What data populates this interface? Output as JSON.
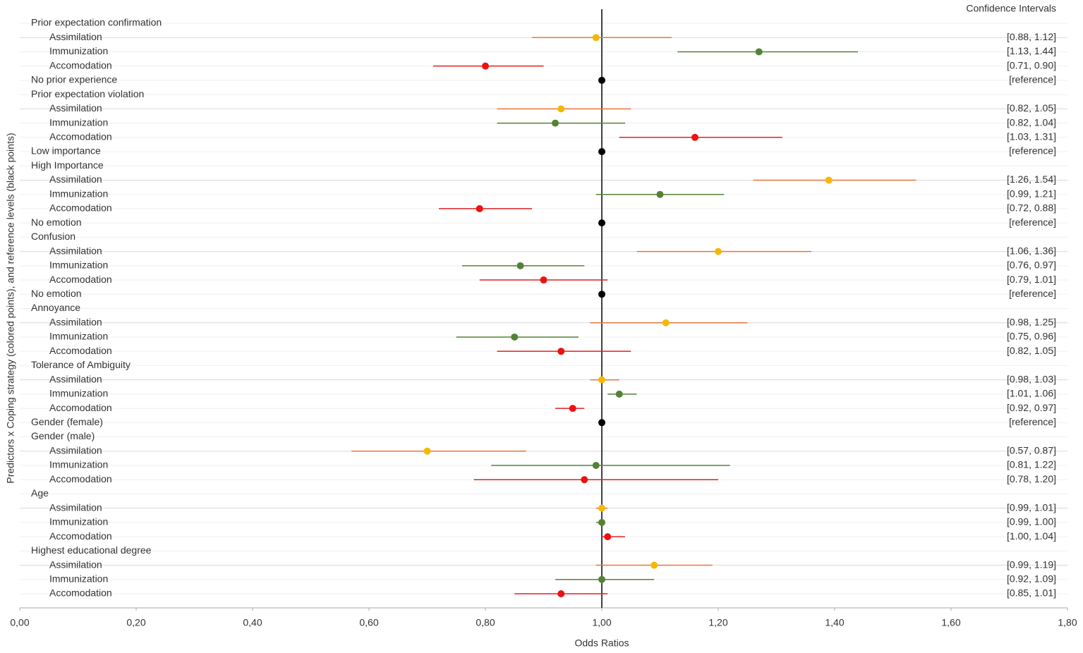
{
  "chart_data": {
    "type": "forest",
    "x_label": "Odds Ratios",
    "y_label": "Predictors x Coping strategy (colored points), and reference levels (black points)",
    "ci_header": "Confidence Intervals",
    "xlim": [
      0,
      1.8
    ],
    "xticks": [
      {
        "value": 0,
        "label": "0,00"
      },
      {
        "value": 0.2,
        "label": "0,20"
      },
      {
        "value": 0.4,
        "label": "0,40"
      },
      {
        "value": 0.6,
        "label": "0,60"
      },
      {
        "value": 0.8,
        "label": "0,80"
      },
      {
        "value": 1,
        "label": "1,00"
      },
      {
        "value": 1.2,
        "label": "1,20"
      },
      {
        "value": 1.4,
        "label": "1,40"
      },
      {
        "value": 1.6,
        "label": "1,60"
      },
      {
        "value": 1.8,
        "label": "1,80"
      }
    ],
    "reference_line": 1,
    "rows": [
      {
        "label": "Prior expectation confirmation",
        "kind": "header"
      },
      {
        "label": "Assimilation",
        "kind": "estimate",
        "value": 0.99,
        "ci": [
          0.88,
          1.12
        ],
        "ci_label": "[0.88, 1.12]",
        "color": "#f5b800",
        "line_color": "#e8743b"
      },
      {
        "label": "Immunization",
        "kind": "estimate",
        "value": 1.27,
        "ci": [
          1.13,
          1.44
        ],
        "ci_label": "[1.13, 1.44]",
        "color": "#548235",
        "line_color": "#548235"
      },
      {
        "label": "Accomodation",
        "kind": "estimate",
        "value": 0.8,
        "ci": [
          0.71,
          0.9
        ],
        "ci_label": "[0.71, 0.90]",
        "color": "#ee1111",
        "line_color": "#dd2222"
      },
      {
        "label": "No prior experience",
        "kind": "reference",
        "value": 1,
        "ci_label": "[reference]",
        "color": "#000000"
      },
      {
        "label": "Prior expectation violation",
        "kind": "header"
      },
      {
        "label": "Assimilation",
        "kind": "estimate",
        "value": 0.93,
        "ci": [
          0.82,
          1.05
        ],
        "ci_label": "[0.82, 1.05]",
        "color": "#f5b800",
        "line_color": "#e8743b"
      },
      {
        "label": "Immunization",
        "kind": "estimate",
        "value": 0.92,
        "ci": [
          0.82,
          1.04
        ],
        "ci_label": "[0.82, 1.04]",
        "color": "#548235",
        "line_color": "#548235"
      },
      {
        "label": "Accomodation",
        "kind": "estimate",
        "value": 1.16,
        "ci": [
          1.03,
          1.31
        ],
        "ci_label": "[1.03, 1.31]",
        "color": "#ee1111",
        "line_color": "#dd2222"
      },
      {
        "label": "Low importance",
        "kind": "reference",
        "value": 1,
        "ci_label": "[reference]",
        "color": "#000000"
      },
      {
        "label": "High Importance",
        "kind": "header"
      },
      {
        "label": "Assimilation",
        "kind": "estimate",
        "value": 1.39,
        "ci": [
          1.26,
          1.54
        ],
        "ci_label": "[1.26, 1.54]",
        "color": "#f5b800",
        "line_color": "#e8743b"
      },
      {
        "label": "Immunization",
        "kind": "estimate",
        "value": 1.1,
        "ci": [
          0.99,
          1.21
        ],
        "ci_label": "[0.99, 1.21]",
        "color": "#548235",
        "line_color": "#548235"
      },
      {
        "label": "Accomodation",
        "kind": "estimate",
        "value": 0.79,
        "ci": [
          0.72,
          0.88
        ],
        "ci_label": "[0.72, 0.88]",
        "color": "#ee1111",
        "line_color": "#dd2222"
      },
      {
        "label": "No emotion",
        "kind": "reference",
        "value": 1,
        "ci_label": "[reference]",
        "color": "#000000"
      },
      {
        "label": "Confusion",
        "kind": "header"
      },
      {
        "label": "Assimilation",
        "kind": "estimate",
        "value": 1.2,
        "ci": [
          1.06,
          1.36
        ],
        "ci_label": "[1.06, 1.36]",
        "color": "#f5b800",
        "line_color": "#e8743b"
      },
      {
        "label": "Immunization",
        "kind": "estimate",
        "value": 0.86,
        "ci": [
          0.76,
          0.97
        ],
        "ci_label": "[0.76, 0.97]",
        "color": "#548235",
        "line_color": "#548235"
      },
      {
        "label": "Accomodation",
        "kind": "estimate",
        "value": 0.9,
        "ci": [
          0.79,
          1.01
        ],
        "ci_label": "[0.79, 1.01]",
        "color": "#ee1111",
        "line_color": "#dd2222"
      },
      {
        "label": "No emotion",
        "kind": "reference",
        "value": 1,
        "ci_label": "[reference]",
        "color": "#000000"
      },
      {
        "label": "Annoyance",
        "kind": "header"
      },
      {
        "label": "Assimilation",
        "kind": "estimate",
        "value": 1.11,
        "ci": [
          0.98,
          1.25
        ],
        "ci_label": "[0.98, 1.25]",
        "color": "#f5b800",
        "line_color": "#e8743b"
      },
      {
        "label": "Immunization",
        "kind": "estimate",
        "value": 0.85,
        "ci": [
          0.75,
          0.96
        ],
        "ci_label": "[0.75, 0.96]",
        "color": "#548235",
        "line_color": "#548235"
      },
      {
        "label": "Accomodation",
        "kind": "estimate",
        "value": 0.93,
        "ci": [
          0.82,
          1.05
        ],
        "ci_label": "[0.82, 1.05]",
        "color": "#ee1111",
        "line_color": "#dd2222"
      },
      {
        "label": "Tolerance of Ambiguity",
        "kind": "header"
      },
      {
        "label": "Assimilation",
        "kind": "estimate",
        "value": 1.0,
        "ci": [
          0.98,
          1.03
        ],
        "ci_label": "[0.98, 1.03]",
        "color": "#f5b800",
        "line_color": "#e8743b"
      },
      {
        "label": "Immunization",
        "kind": "estimate",
        "value": 1.03,
        "ci": [
          1.01,
          1.06
        ],
        "ci_label": "[1.01, 1.06]",
        "color": "#548235",
        "line_color": "#548235"
      },
      {
        "label": "Accomodation",
        "kind": "estimate",
        "value": 0.95,
        "ci": [
          0.92,
          0.97
        ],
        "ci_label": "[0.92, 0.97]",
        "color": "#ee1111",
        "line_color": "#dd2222"
      },
      {
        "label": "Gender (female)",
        "kind": "reference",
        "value": 1,
        "ci_label": "[reference]",
        "color": "#000000"
      },
      {
        "label": "Gender (male)",
        "kind": "header"
      },
      {
        "label": "Assimilation",
        "kind": "estimate",
        "value": 0.7,
        "ci": [
          0.57,
          0.87
        ],
        "ci_label": "[0.57, 0.87]",
        "color": "#f5b800",
        "line_color": "#e8743b"
      },
      {
        "label": "Immunization",
        "kind": "estimate",
        "value": 0.99,
        "ci": [
          0.81,
          1.22
        ],
        "ci_label": "[0.81, 1.22]",
        "color": "#548235",
        "line_color": "#548235"
      },
      {
        "label": "Accomodation",
        "kind": "estimate",
        "value": 0.97,
        "ci": [
          0.78,
          1.2
        ],
        "ci_label": "[0.78, 1.20]",
        "color": "#ee1111",
        "line_color": "#dd2222"
      },
      {
        "label": "Age",
        "kind": "header"
      },
      {
        "label": "Assimilation",
        "kind": "estimate",
        "value": 1.0,
        "ci": [
          0.99,
          1.01
        ],
        "ci_label": "[0.99, 1.01]",
        "color": "#f5b800",
        "line_color": "#e8743b"
      },
      {
        "label": "Immunization",
        "kind": "estimate",
        "value": 1.0,
        "ci": [
          0.99,
          1.0
        ],
        "ci_label": "[0.99, 1.00]",
        "color": "#548235",
        "line_color": "#548235"
      },
      {
        "label": "Accomodation",
        "kind": "estimate",
        "value": 1.01,
        "ci": [
          1.0,
          1.04
        ],
        "ci_label": "[1.00, 1.04]",
        "color": "#ee1111",
        "line_color": "#dd2222"
      },
      {
        "label": "Highest educational degree",
        "kind": "header"
      },
      {
        "label": "Assimilation",
        "kind": "estimate",
        "value": 1.09,
        "ci": [
          0.99,
          1.19
        ],
        "ci_label": "[0.99, 1.19]",
        "color": "#f5b800",
        "line_color": "#e8743b"
      },
      {
        "label": "Immunization",
        "kind": "estimate",
        "value": 1.0,
        "ci": [
          0.92,
          1.09
        ],
        "ci_label": "[0.92, 1.09]",
        "color": "#548235",
        "line_color": "#548235"
      },
      {
        "label": "Accomodation",
        "kind": "estimate",
        "value": 0.93,
        "ci": [
          0.85,
          1.01
        ],
        "ci_label": "[0.85, 1.01]",
        "color": "#ee1111",
        "line_color": "#dd2222"
      }
    ]
  }
}
